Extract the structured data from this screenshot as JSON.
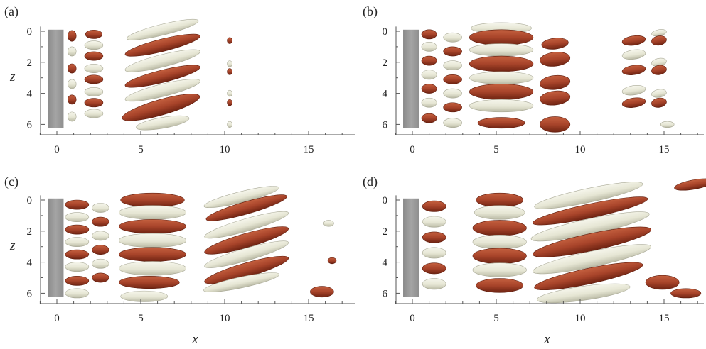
{
  "figure": {
    "x_axis_label": "x",
    "z_axis_label": "z",
    "colors": {
      "positive_iso": "#a8442a",
      "negative_iso": "#ebebdc",
      "cylinder": "#9a9a9a",
      "axis": "#555555"
    }
  },
  "panels": [
    {
      "label": "(a)",
      "x_ticks": [
        "0",
        "5",
        "10",
        "15"
      ],
      "z_ticks": [
        "0",
        "2",
        "4",
        "6"
      ],
      "show_z_label": true,
      "show_x_label": false
    },
    {
      "label": "(b)",
      "x_ticks": [
        "0",
        "5",
        "10",
        "15"
      ],
      "z_ticks": [
        "0",
        "2",
        "4",
        "6"
      ],
      "show_z_label": false,
      "show_x_label": false
    },
    {
      "label": "(c)",
      "x_ticks": [
        "0",
        "5",
        "10",
        "15"
      ],
      "z_ticks": [
        "0",
        "2",
        "4",
        "6"
      ],
      "show_z_label": true,
      "show_x_label": true
    },
    {
      "label": "(d)",
      "x_ticks": [
        "0",
        "5",
        "10",
        "15"
      ],
      "z_ticks": [
        "0",
        "2",
        "4",
        "6"
      ],
      "show_z_label": false,
      "show_x_label": true
    }
  ],
  "chart_data": [
    {
      "type": "other",
      "description_label": "(a)",
      "x_ticks": [
        0,
        5,
        10,
        15
      ],
      "z_ticks": [
        0,
        2,
        4,
        6
      ],
      "xlim": [
        -1.5,
        17.5
      ],
      "zlim": [
        -0.5,
        7
      ]
    },
    {
      "type": "other",
      "description_label": "(b)",
      "x_ticks": [
        0,
        5,
        10,
        15
      ],
      "z_ticks": [
        0,
        2,
        4,
        6
      ],
      "xlim": [
        -1.5,
        17.5
      ],
      "zlim": [
        -0.5,
        7
      ]
    },
    {
      "type": "other",
      "description_label": "(c)",
      "x_ticks": [
        0,
        5,
        10,
        15
      ],
      "z_ticks": [
        0,
        2,
        4,
        6
      ],
      "xlim": [
        -1.5,
        17.5
      ],
      "zlim": [
        -0.5,
        7
      ]
    },
    {
      "type": "other",
      "description_label": "(d)",
      "x_ticks": [
        0,
        5,
        10,
        15
      ],
      "z_ticks": [
        0,
        2,
        4,
        6
      ],
      "xlim": [
        -1.5,
        17.5
      ],
      "zlim": [
        -0.5,
        7
      ]
    }
  ]
}
